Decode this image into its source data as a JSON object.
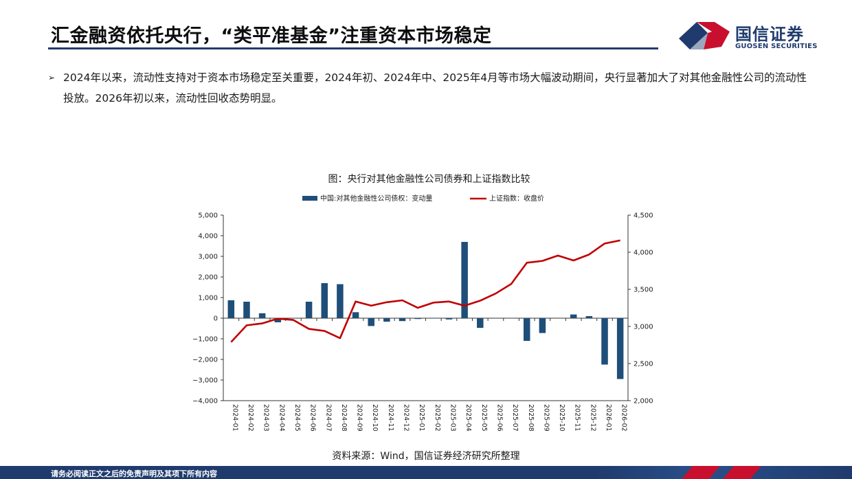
{
  "header": {
    "title": "汇金融资依托央行，“类平准基金”注重资本市场稳定",
    "logo_cn": "国信证券",
    "logo_en": "GUOSEN SECURITIES",
    "brand_blue": "#1f3b6e",
    "brand_red": "#c8102e"
  },
  "bullet": {
    "marker": "➢",
    "text": "2024年以来，流动性支持对于资本市场稳定至关重要，2024年初、2024年中、2025年4月等市场大幅波动期间，央行显著加大了对其他金融性公司的流动性投放。2026年初以来，流动性回收态势明显。"
  },
  "chart_data": {
    "type": "bar+line",
    "title": "图：央行对其他金融性公司债券和上证指数比较",
    "categories": [
      "2024-01",
      "2024-02",
      "2024-03",
      "2024-04",
      "2024-05",
      "2024-06",
      "2024-07",
      "2024-08",
      "2024-09",
      "2024-10",
      "2024-11",
      "2024-12",
      "2025-01",
      "2025-02",
      "2025-03",
      "2025-04",
      "2025-05",
      "2025-06",
      "2025-07",
      "2025-08",
      "2025-09",
      "2025-10",
      "2025-11",
      "2025-12",
      "2026-01",
      "2026-02"
    ],
    "series": [
      {
        "name": "中国:对其他金融性公司债权：变动量",
        "type": "bar",
        "axis": "left",
        "color": "#1f4e79",
        "values": [
          870,
          800,
          240,
          -200,
          -10,
          800,
          1700,
          1650,
          290,
          -380,
          -170,
          -140,
          -40,
          -10,
          -60,
          3700,
          -470,
          0,
          -10,
          -1100,
          -720,
          0,
          180,
          100,
          -2250,
          -2950
        ]
      },
      {
        "name": "上证指数：收盘价",
        "type": "line",
        "axis": "right",
        "color": "#c00000",
        "values": [
          2789,
          3015,
          3041,
          3105,
          3087,
          2967,
          2939,
          2842,
          3336,
          3280,
          3326,
          3352,
          3251,
          3321,
          3336,
          3279,
          3347,
          3444,
          3573,
          3858,
          3883,
          3955,
          3889,
          3969,
          4117,
          4160
        ]
      }
    ],
    "y_left": {
      "min": -4000,
      "max": 5000,
      "step": 1000
    },
    "y_right": {
      "min": 2000,
      "max": 4500,
      "step": 500
    },
    "y_left_ticks": [
      "5,000",
      "4,000",
      "3,000",
      "2,000",
      "1,000",
      "0",
      "−1,000",
      "−2,000",
      "−3,000",
      "−4,000"
    ],
    "y_right_ticks": [
      "4,500",
      "4,000",
      "3,500",
      "3,000",
      "2,500",
      "2,000"
    ],
    "legend_position": "top"
  },
  "source": "资料来源：Wind，国信证券经济研究所整理",
  "footer": {
    "disclaimer": "请务必阅读正文之后的免责声明及其项下所有内容"
  }
}
